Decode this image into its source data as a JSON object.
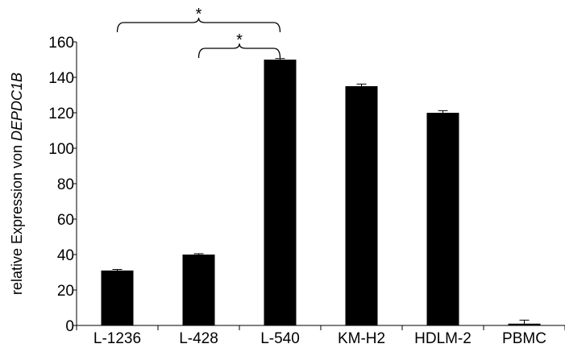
{
  "chart_data": {
    "type": "bar",
    "categories": [
      "L-1236",
      "L-428",
      "L-540",
      "KM-H2",
      "HDLM-2",
      "PBMC"
    ],
    "values": [
      31,
      40,
      150,
      135,
      120,
      1
    ],
    "errors": [
      0.6,
      0.5,
      0.6,
      1.2,
      1.2,
      2.0
    ],
    "ylabel_prefix": "relative Expression von ",
    "ylabel_gene": "DEPDC1B",
    "ylim": [
      0,
      160
    ],
    "yticks": [
      0,
      20,
      40,
      60,
      80,
      100,
      120,
      140,
      160
    ],
    "bar_color": "#000000",
    "grid": false,
    "significance": [
      {
        "from": "L-1236",
        "to": "L-540",
        "label": "*"
      },
      {
        "from": "L-428",
        "to": "L-540",
        "label": "*"
      }
    ]
  }
}
